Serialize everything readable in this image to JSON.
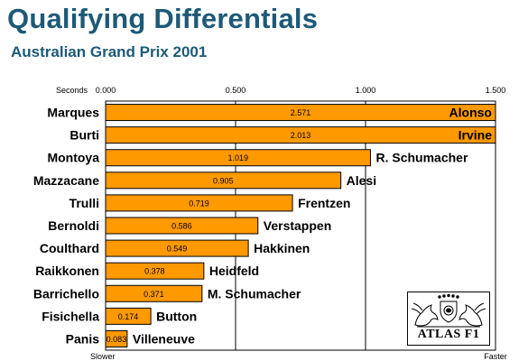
{
  "title": "Qualifying Differentials",
  "subtitle": "Australian Grand Prix 2001",
  "logo_text": "ATLAS F1",
  "colors": {
    "title": "#1d5a77",
    "bar": "#ff9900",
    "bar_border": "#000000",
    "background": "#ffffff"
  },
  "chart_data": {
    "type": "bar",
    "orientation": "horizontal",
    "axis_label": "Seconds",
    "x_ticks": [
      "0.000",
      "0.500",
      "1.000",
      "1.500"
    ],
    "xlim": [
      0,
      1.5
    ],
    "grid": "vertical",
    "left_axis_caption": "Slower",
    "right_axis_caption": "Faster",
    "rows": [
      {
        "slower": "Marques",
        "faster": "Alonso",
        "value": 2.571,
        "label": "2.571"
      },
      {
        "slower": "Burti",
        "faster": "Irvine",
        "value": 2.013,
        "label": "2.013"
      },
      {
        "slower": "Montoya",
        "faster": "R. Schumacher",
        "value": 1.019,
        "label": "1.019"
      },
      {
        "slower": "Mazzacane",
        "faster": "Alesi",
        "value": 0.905,
        "label": "0.905"
      },
      {
        "slower": "Trulli",
        "faster": "Frentzen",
        "value": 0.719,
        "label": "0.719"
      },
      {
        "slower": "Bernoldi",
        "faster": "Verstappen",
        "value": 0.586,
        "label": "0.586"
      },
      {
        "slower": "Coulthard",
        "faster": "Hakkinen",
        "value": 0.549,
        "label": "0.549"
      },
      {
        "slower": "Raikkonen",
        "faster": "Heidfeld",
        "value": 0.378,
        "label": "0.378"
      },
      {
        "slower": "Barrichello",
        "faster": "M. Schumacher",
        "value": 0.371,
        "label": "0.371"
      },
      {
        "slower": "Fisichella",
        "faster": "Button",
        "value": 0.174,
        "label": "0.174"
      },
      {
        "slower": "Panis",
        "faster": "Villeneuve",
        "value": 0.083,
        "label": "0.083"
      }
    ]
  }
}
